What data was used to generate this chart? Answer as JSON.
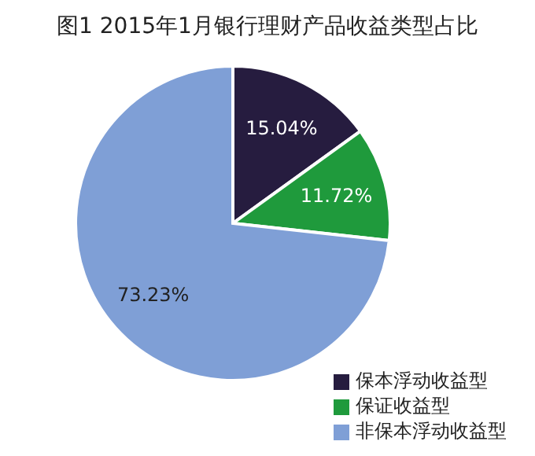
{
  "chart_data": {
    "type": "pie",
    "title": "图1  2015年1月银行理财产品收益类型占比",
    "categories": [
      "保本浮动收益型",
      "保证收益型",
      "非保本浮动收益型"
    ],
    "values": [
      15.04,
      11.72,
      73.23
    ],
    "value_labels": [
      "15.04%",
      "11.72%",
      "73.23%"
    ],
    "colors": [
      "#261c3f",
      "#1f9a3c",
      "#7f9fd6"
    ],
    "legend": "bottom right"
  }
}
